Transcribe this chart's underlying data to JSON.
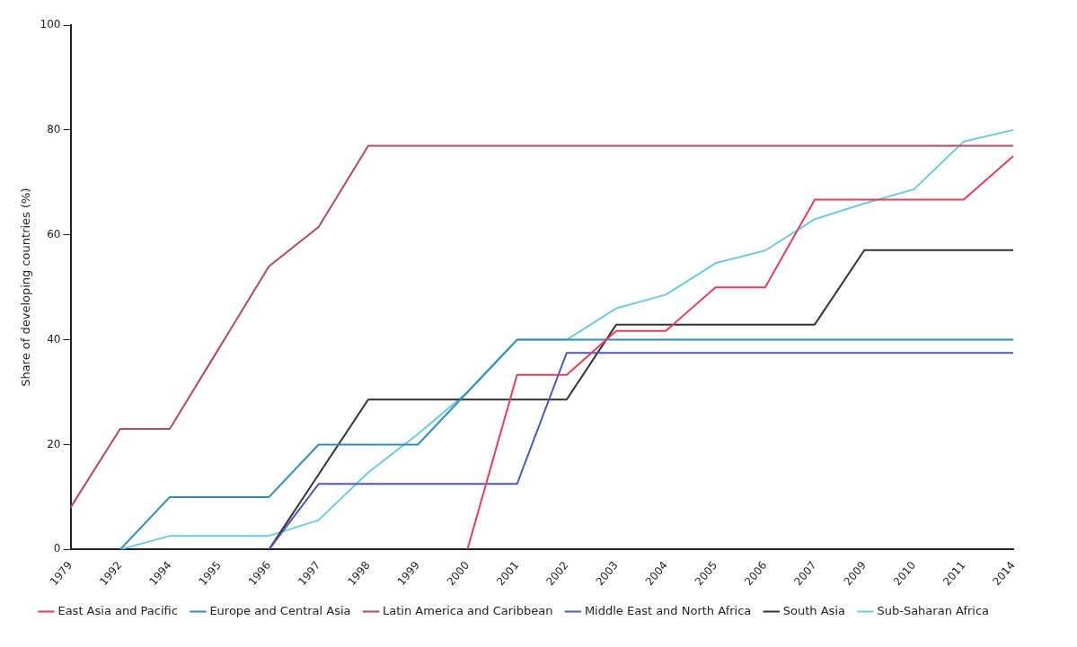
{
  "chart_data": {
    "type": "line",
    "ylabel": "Share of developing countries (%)",
    "categories": [
      "1979",
      "1992",
      "1994",
      "1995",
      "1996",
      "1997",
      "1998",
      "1999",
      "2000",
      "2001",
      "2002",
      "2003",
      "2004",
      "2005",
      "2006",
      "2007",
      "2009",
      "2010",
      "2011",
      "2014"
    ],
    "ylim": [
      0,
      100
    ],
    "yticks": [
      0,
      20,
      40,
      60,
      80,
      100
    ],
    "grid": false,
    "legend": "bottom",
    "marker": "none",
    "line_style": "solid",
    "series": [
      {
        "name": "East Asia and Pacific",
        "color": "#e0405a",
        "values": [
          null,
          null,
          null,
          null,
          null,
          null,
          null,
          null,
          0,
          33.3,
          33.3,
          41.7,
          41.7,
          50,
          50,
          66.7,
          66.7,
          66.7,
          66.7,
          75
        ]
      },
      {
        "name": "Europe and Central Asia",
        "color": "#2f8cb5",
        "values": [
          null,
          0,
          10,
          10,
          10,
          20,
          20,
          20,
          30,
          40,
          40,
          40,
          40,
          40,
          40,
          40,
          40,
          40,
          40,
          40
        ]
      },
      {
        "name": "Latin America and Caribbean",
        "color": "#b04a5e",
        "values": [
          8,
          23,
          23,
          38.5,
          54,
          61.5,
          77,
          77,
          77,
          77,
          77,
          77,
          77,
          77,
          77,
          77,
          77,
          77,
          77,
          77
        ]
      },
      {
        "name": "Middle East and North Africa",
        "color": "#4a5bb0",
        "values": [
          null,
          null,
          null,
          null,
          0,
          12.5,
          12.5,
          12.5,
          12.5,
          12.5,
          37.5,
          37.5,
          37.5,
          37.5,
          37.5,
          37.5,
          37.5,
          37.5,
          37.5,
          37.5
        ]
      },
      {
        "name": "South Asia",
        "color": "#333333",
        "values": [
          null,
          null,
          null,
          null,
          0,
          14.3,
          28.6,
          28.6,
          28.6,
          28.6,
          28.6,
          42.9,
          42.9,
          42.9,
          42.9,
          42.9,
          57.1,
          57.1,
          57.1,
          57.1
        ]
      },
      {
        "name": "Sub-Saharan Africa",
        "color": "#6ecbdc",
        "values": [
          null,
          0,
          2.6,
          2.6,
          2.6,
          5.6,
          14.7,
          22,
          30,
          40,
          40,
          46,
          48.6,
          54.6,
          57,
          63,
          66,
          68.7,
          77.8,
          80
        ]
      }
    ]
  }
}
